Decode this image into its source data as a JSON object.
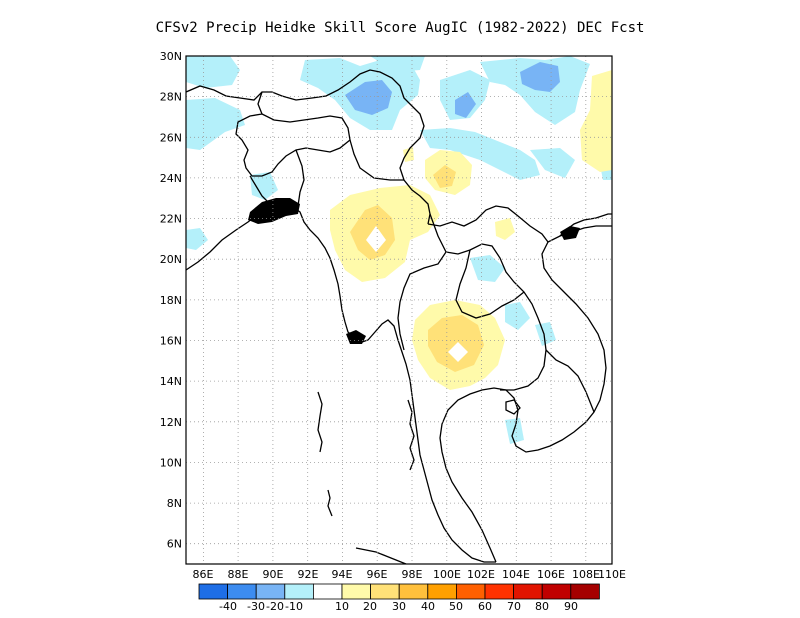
{
  "title": "CFSv2 Precip Heidke Skill Score AugIC (1982-2022) DEC Fcst",
  "map": {
    "lon_range": [
      85.5,
      110
    ],
    "lat_range": [
      5,
      30
    ],
    "lon_ticks": [
      "86E",
      "88E",
      "90E",
      "92E",
      "94E",
      "96E",
      "98E",
      "100E",
      "102E",
      "104E",
      "106E",
      "108E",
      "110E"
    ],
    "lat_ticks": [
      "6N",
      "8N",
      "10N",
      "12N",
      "14N",
      "16N",
      "18N",
      "20N",
      "22N",
      "24N",
      "26N",
      "28N",
      "30N"
    ]
  },
  "colorbar": {
    "colors": [
      "#1e6ee6",
      "#3c8cf0",
      "#78b4f5",
      "#b4f0fa",
      "#ffffff",
      "#fffaaa",
      "#ffe178",
      "#ffc03c",
      "#ffa000",
      "#ff6000",
      "#ff3200",
      "#e11400",
      "#c00000",
      "#a50000"
    ],
    "labels": [
      "-40",
      "-30",
      "-20",
      "-10",
      "10",
      "20",
      "30",
      "40",
      "50",
      "60",
      "70",
      "80",
      "90"
    ]
  },
  "fields": {
    "light_blue": "#b4f0fa",
    "mid_blue": "#78b4f5",
    "light_yellow": "#fffaaa",
    "yellow": "#ffe178"
  }
}
